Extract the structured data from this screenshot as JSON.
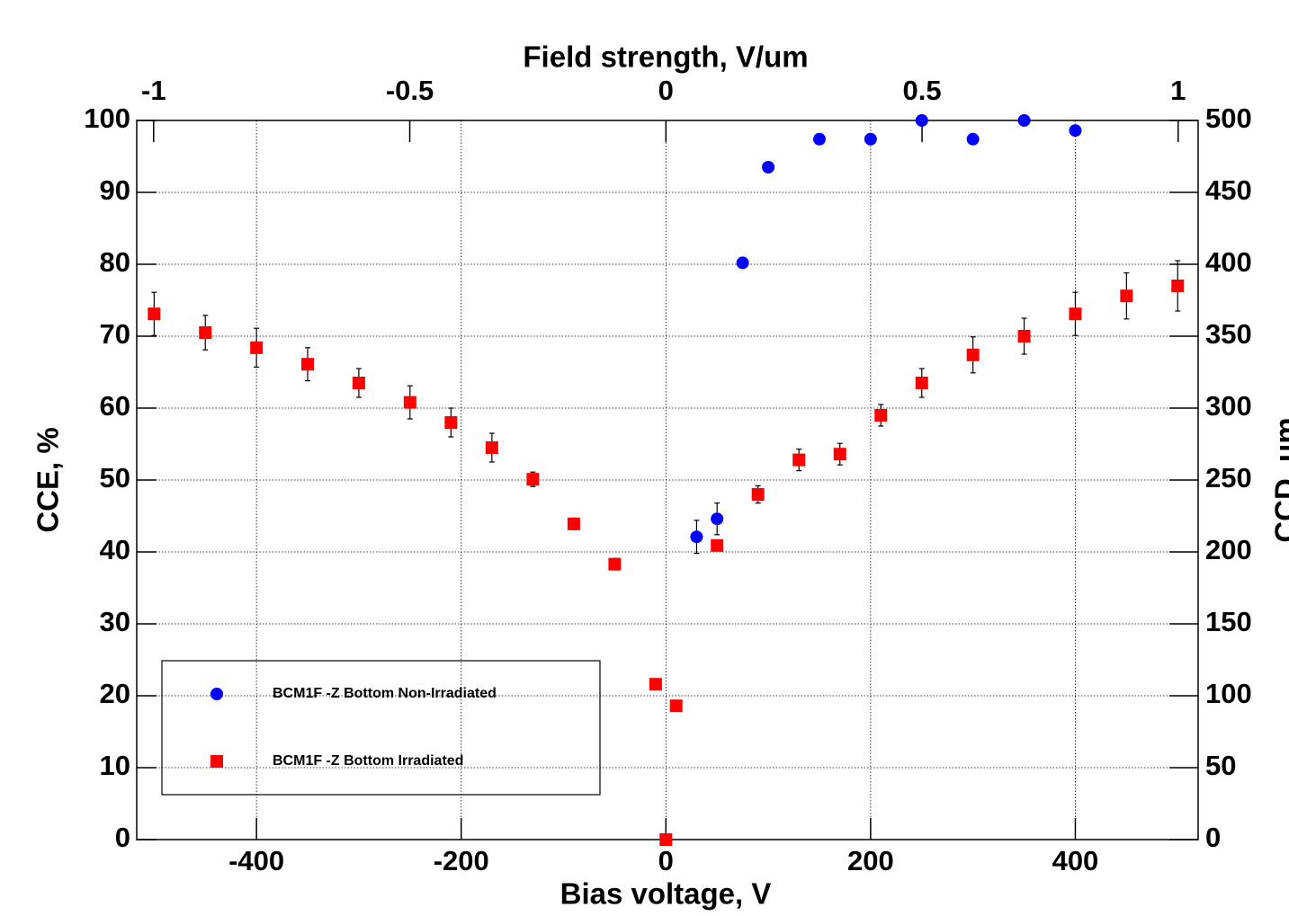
{
  "chart_data": {
    "type": "scatter",
    "x_label": "Bias voltage, V",
    "x2_label": "Field strength, V/um",
    "y_label": "CCE, %",
    "y2_label": "CCD, um",
    "xlim": [
      -517,
      520
    ],
    "xticks": [
      -400,
      -200,
      0,
      200,
      400
    ],
    "x2lim": [
      -1.033,
      1.039
    ],
    "x2ticks": [
      -1,
      -0.5,
      0,
      0.5,
      1
    ],
    "ylim": [
      0,
      100
    ],
    "yticks": [
      0,
      10,
      20,
      30,
      40,
      50,
      60,
      70,
      80,
      90,
      100
    ],
    "y2lim": [
      0,
      500
    ],
    "y2ticks": [
      0,
      50,
      100,
      150,
      200,
      250,
      300,
      350,
      400,
      450,
      500
    ],
    "grid": true,
    "legend_position": "lower left",
    "series": [
      {
        "name": "BCM1F -Z Bottom Non-Irradiated",
        "color": "#0000ff",
        "marker": "circle",
        "x": [
          30,
          50,
          75,
          100,
          150,
          200,
          250,
          300,
          350,
          400
        ],
        "values": [
          42.1,
          44.6,
          80.2,
          93.5,
          97.4,
          97.4,
          100,
          97.4,
          100,
          98.6
        ],
        "errors": [
          2.3,
          2.2,
          0,
          0,
          0,
          0,
          0,
          0,
          0,
          0
        ]
      },
      {
        "name": "BCM1F -Z Bottom Irradiated",
        "color": "#ff0000",
        "marker": "square",
        "x": [
          -500,
          -450,
          -400,
          -350,
          -300,
          -250,
          -210,
          -170,
          -130,
          -90,
          -50,
          -10,
          0,
          10,
          50,
          90,
          130,
          170,
          210,
          250,
          300,
          350,
          400,
          450,
          500
        ],
        "values": [
          73.1,
          70.5,
          68.4,
          66.1,
          63.5,
          60.8,
          58.0,
          54.5,
          50.1,
          43.9,
          38.3,
          21.6,
          0,
          18.6,
          40.9,
          48.0,
          52.8,
          53.6,
          59.0,
          63.5,
          67.4,
          70.0,
          73.1,
          75.6,
          77.0
        ],
        "errors": [
          3.0,
          2.4,
          2.7,
          2.3,
          2.0,
          2.3,
          2.0,
          2.0,
          1.0,
          0.8,
          0.8,
          0,
          0,
          0,
          0,
          1.2,
          1.5,
          1.5,
          1.5,
          2.0,
          2.5,
          2.5,
          3.0,
          3.2,
          3.5
        ]
      }
    ]
  }
}
